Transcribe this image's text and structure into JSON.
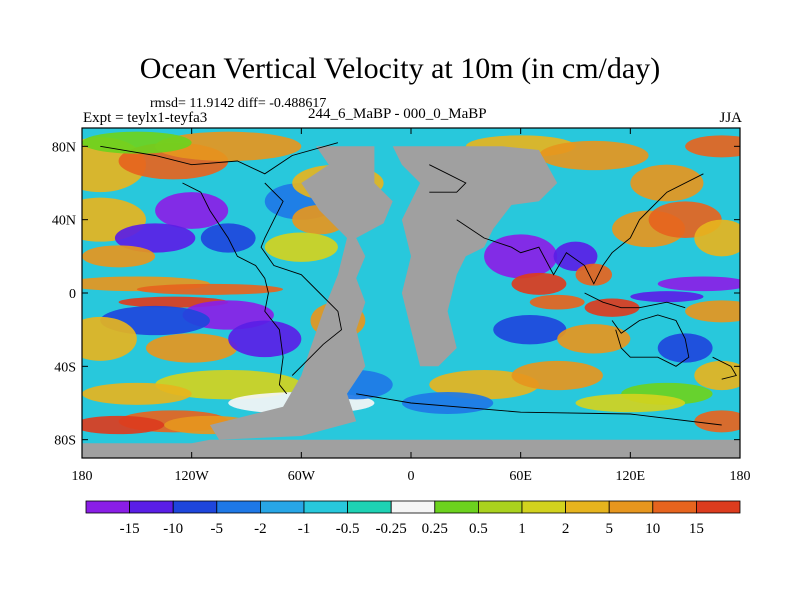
{
  "title": "Ocean Vertical Velocity at 10m (in cm/day)",
  "stats_label": "rmsd= 11.9142 diff= -0.488617",
  "expt_label": "Expt = teylx1-teyfa3",
  "difference_label": "244_6_MaBP - 000_0_MaBP",
  "season_label": "JJA",
  "y_ticks": [
    {
      "label": "80N",
      "lat": 80
    },
    {
      "label": "40N",
      "lat": 40
    },
    {
      "label": "0",
      "lat": 0
    },
    {
      "label": "40S",
      "lat": -40
    },
    {
      "label": "80S",
      "lat": -80
    }
  ],
  "x_ticks": [
    {
      "label": "180",
      "lon": -180
    },
    {
      "label": "120W",
      "lon": -120
    },
    {
      "label": "60W",
      "lon": -60
    },
    {
      "label": "0",
      "lon": 0
    },
    {
      "label": "60E",
      "lon": 60
    },
    {
      "label": "120E",
      "lon": 120
    },
    {
      "label": "180",
      "lon": 180
    }
  ],
  "colorbar": {
    "colors": [
      "#8a1ee6",
      "#5a1ee6",
      "#1e46dc",
      "#1e78e6",
      "#28a6e6",
      "#28c8dc",
      "#1ed2b4",
      "#f5f5f5",
      "#6cd21e",
      "#aad21e",
      "#d2d21e",
      "#e6b41e",
      "#e6961e",
      "#e6641e",
      "#dc3c1e"
    ],
    "labels": [
      "-15",
      "-10",
      "-5",
      "-2",
      "-1",
      "-0.5",
      "-0.25",
      "0.25",
      "0.5",
      "1",
      "2",
      "5",
      "10",
      "15"
    ]
  },
  "map_colors": {
    "land": "#a0a0a0",
    "coast": "#000000"
  }
}
